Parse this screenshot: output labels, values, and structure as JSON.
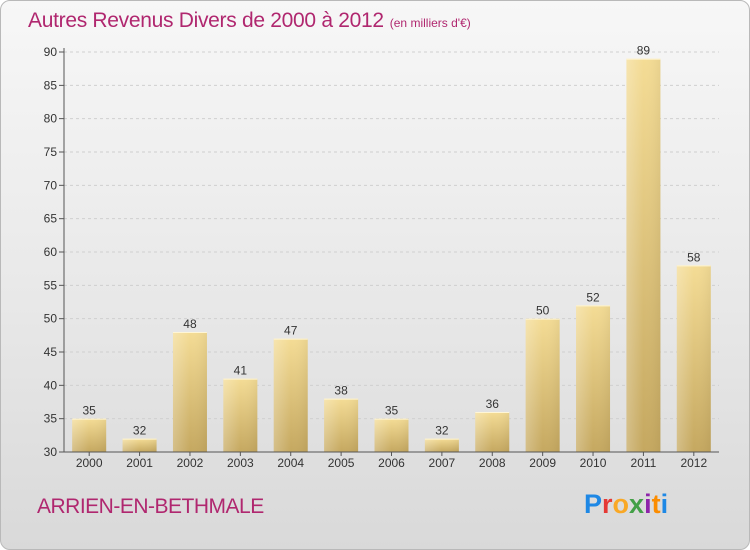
{
  "header": {
    "title": "Autres Revenus Divers de 2000 à 2012",
    "subtitle": "(en milliers d'€)"
  },
  "footer": {
    "town": "ARRIEN-EN-BETHMALE",
    "logo_text": "Proxiti",
    "logo_colors": [
      "#1e88e5",
      "#e53935",
      "#f9a825",
      "#43a047",
      "#8e24aa",
      "#fb8c00",
      "#1e88e5"
    ]
  },
  "colors": {
    "text_accent": "#b0276f",
    "bar_light": "#f4dc95",
    "bar_dark": "#c5a860",
    "axis": "#555555",
    "grid": "#cfcfcf"
  },
  "chart_data": {
    "type": "bar",
    "title": "Autres Revenus Divers de 2000 à 2012",
    "subtitle": "(en milliers d'€)",
    "xlabel": "",
    "ylabel": "",
    "categories": [
      "2000",
      "2001",
      "2002",
      "2003",
      "2004",
      "2005",
      "2006",
      "2007",
      "2008",
      "2009",
      "2010",
      "2011",
      "2012"
    ],
    "values": [
      35,
      32,
      48,
      41,
      47,
      38,
      35,
      32,
      36,
      50,
      52,
      89,
      58
    ],
    "ylim": [
      30,
      90
    ],
    "yticks": [
      30,
      35,
      40,
      45,
      50,
      55,
      60,
      65,
      70,
      75,
      80,
      85,
      90
    ],
    "grid": true,
    "legend": "none"
  }
}
